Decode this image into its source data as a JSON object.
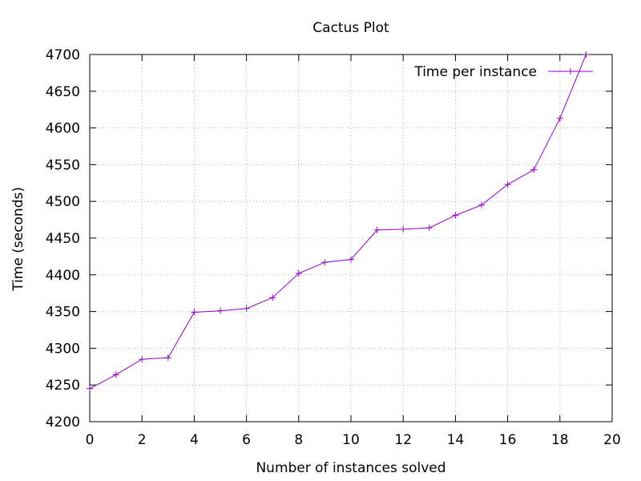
{
  "chart_data": {
    "type": "line",
    "title": "Cactus Plot",
    "xlabel": "Number of instances solved",
    "ylabel": "Time (seconds)",
    "xlim": [
      0,
      20
    ],
    "ylim": [
      4200,
      4700
    ],
    "x_ticks": [
      0,
      2,
      4,
      6,
      8,
      10,
      12,
      14,
      16,
      18,
      20
    ],
    "y_ticks": [
      4200,
      4250,
      4300,
      4350,
      4400,
      4450,
      4500,
      4550,
      4600,
      4650,
      4700
    ],
    "grid": true,
    "legend_position": "top-right",
    "series": [
      {
        "name": "Time per instance",
        "color": "#9400d3",
        "marker": "plus",
        "x": [
          0,
          1,
          2,
          3,
          4,
          5,
          6,
          7,
          8,
          9,
          10,
          11,
          12,
          13,
          14,
          15,
          16,
          17,
          18,
          19
        ],
        "y": [
          4245,
          4264,
          4285,
          4287,
          4349,
          4351,
          4354,
          4369,
          4402,
          4417,
          4421,
          4461,
          4462,
          4464,
          4481,
          4495,
          4523,
          4543,
          4613,
          4700
        ]
      }
    ]
  }
}
